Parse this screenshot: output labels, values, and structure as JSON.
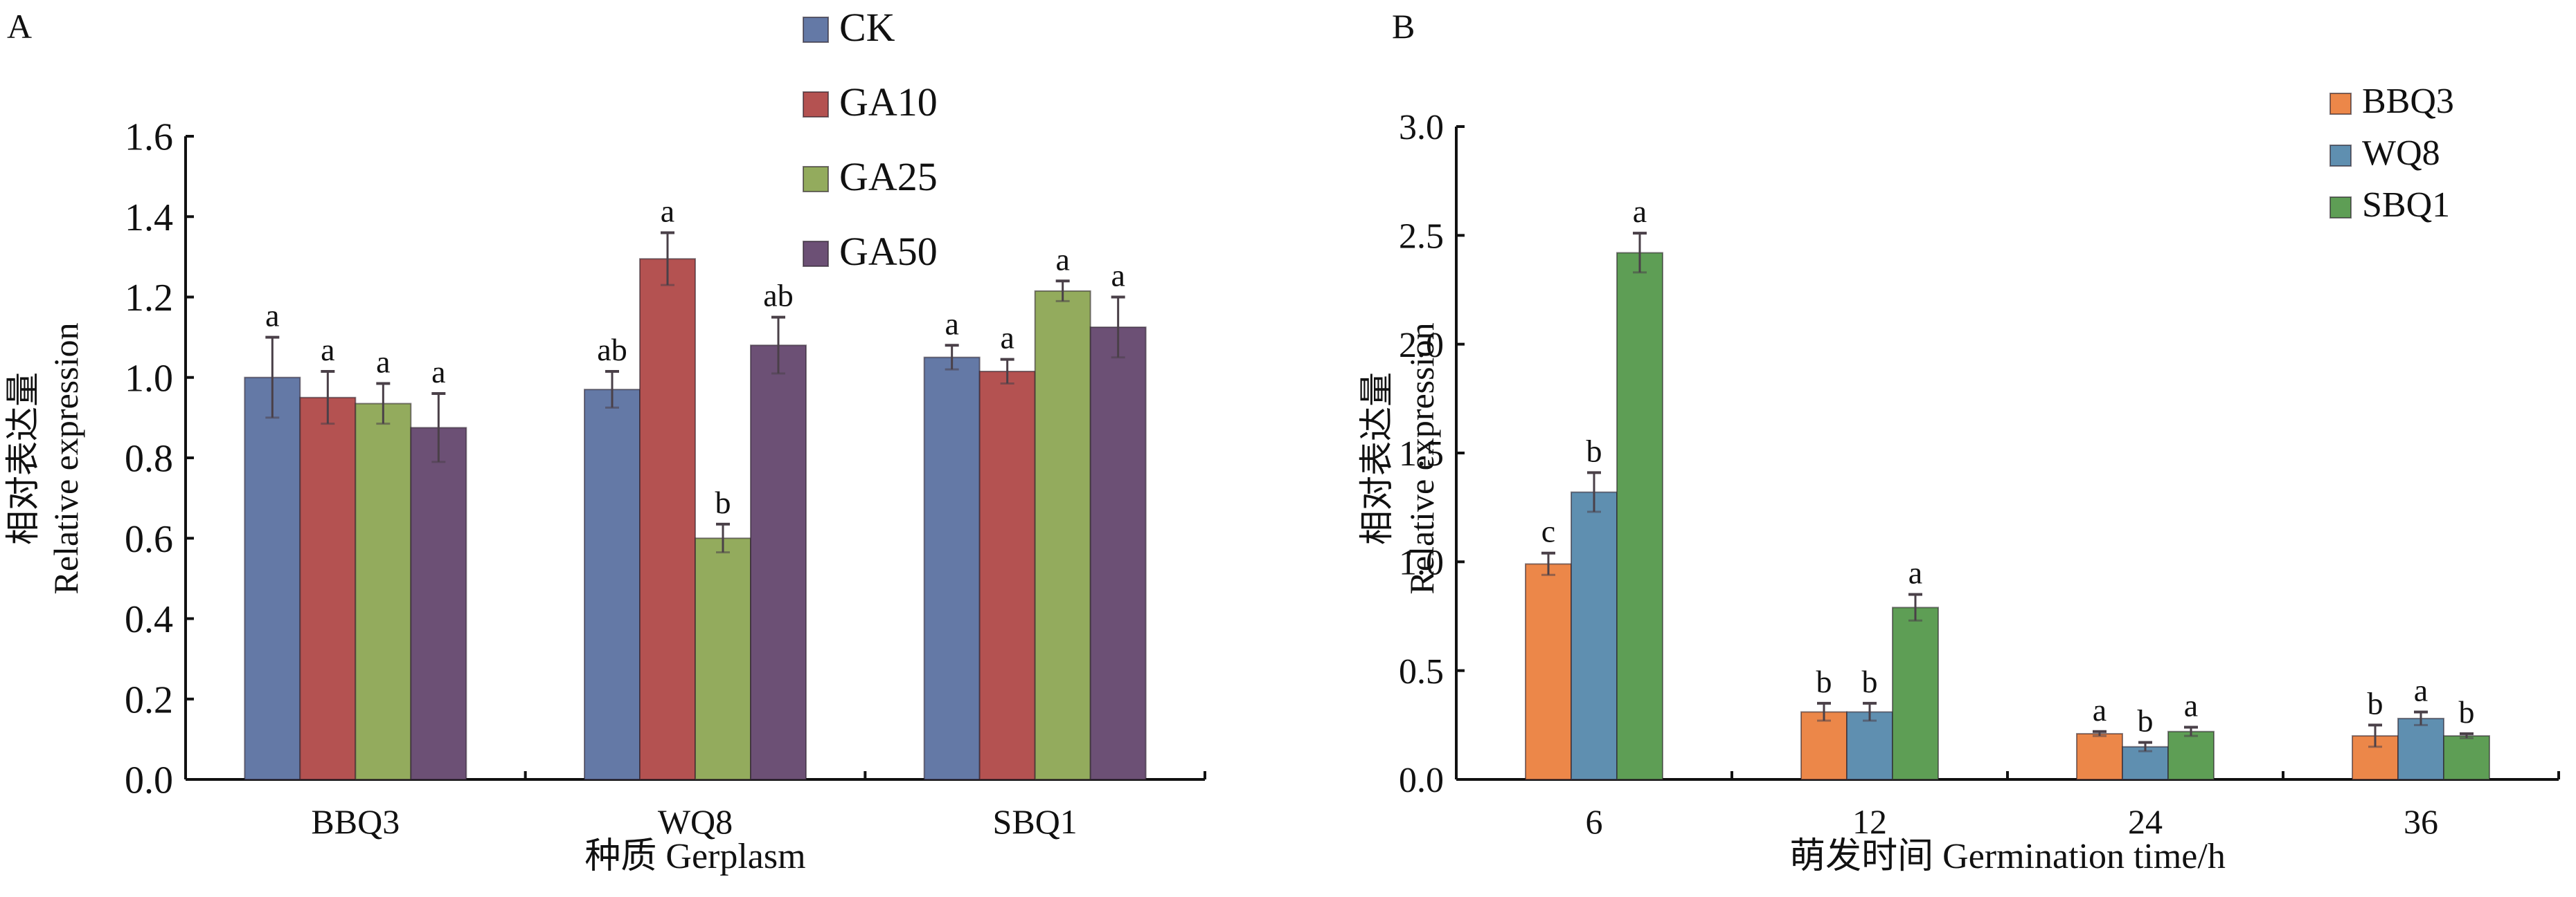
{
  "chart_data": [
    {
      "id": "A",
      "type": "bar",
      "panel_label": "A",
      "title": "",
      "xlabel": "种质 Gerplasm",
      "ylabel_cn": "相对表达量",
      "ylabel_en": "Relative expression",
      "ylim": [
        0,
        1.6
      ],
      "yticks": [
        0.0,
        0.2,
        0.4,
        0.6,
        0.8,
        1.0,
        1.2,
        1.4,
        1.6
      ],
      "ytick_labels": [
        "0.0",
        "0.2",
        "0.4",
        "0.6",
        "0.8",
        "1.0",
        "1.2",
        "1.4",
        "1.6"
      ],
      "categories": [
        "BBQ3",
        "WQ8",
        "SBQ1"
      ],
      "legend_position": "top-center",
      "grid": false,
      "series": [
        {
          "name": "CK",
          "color": "#6479a6",
          "values": [
            1.0,
            0.97,
            1.05
          ],
          "errors": [
            0.1,
            0.045,
            0.03
          ],
          "letters": [
            "a",
            "ab",
            "a"
          ]
        },
        {
          "name": "GA10",
          "color": "#b45251",
          "values": [
            0.95,
            1.295,
            1.015
          ],
          "errors": [
            0.065,
            0.065,
            0.03
          ],
          "letters": [
            "a",
            "a",
            "a"
          ]
        },
        {
          "name": "GA25",
          "color": "#93ab5d",
          "values": [
            0.935,
            0.6,
            1.215
          ],
          "errors": [
            0.05,
            0.035,
            0.025
          ],
          "letters": [
            "a",
            "b",
            "a"
          ]
        },
        {
          "name": "GA50",
          "color": "#6c5075",
          "values": [
            0.875,
            1.08,
            1.125
          ],
          "errors": [
            0.085,
            0.07,
            0.075
          ],
          "letters": [
            "a",
            "ab",
            "a"
          ]
        }
      ]
    },
    {
      "id": "B",
      "type": "bar",
      "panel_label": "B",
      "title": "",
      "xlabel": "萌发时间 Germination time/h",
      "ylabel_cn": "相对表达量",
      "ylabel_en": "Relative expression",
      "ylim": [
        0,
        3.0
      ],
      "yticks": [
        0.0,
        0.5,
        1.0,
        1.5,
        2.0,
        2.5,
        3.0
      ],
      "ytick_labels": [
        "0.0",
        "0.5",
        "1.0",
        "1.5",
        "2.0",
        "2.5",
        "3.0"
      ],
      "categories": [
        "6",
        "12",
        "24",
        "36"
      ],
      "legend_position": "top-right",
      "grid": false,
      "series": [
        {
          "name": "BBQ3",
          "color": "#ec8749",
          "values": [
            0.99,
            0.31,
            0.21,
            0.2
          ],
          "errors": [
            0.05,
            0.04,
            0.01,
            0.05
          ],
          "letters": [
            "c",
            "b",
            "a",
            "b"
          ]
        },
        {
          "name": "WQ8",
          "color": "#5f8fb0",
          "values": [
            1.32,
            0.31,
            0.15,
            0.28
          ],
          "errors": [
            0.09,
            0.04,
            0.02,
            0.03
          ],
          "letters": [
            "b",
            "b",
            "b",
            "a"
          ]
        },
        {
          "name": "SBQ1",
          "color": "#5e9e55",
          "values": [
            2.42,
            0.79,
            0.22,
            0.2
          ],
          "errors": [
            0.09,
            0.06,
            0.02,
            0.01
          ],
          "letters": [
            "a",
            "a",
            "a",
            "b"
          ]
        }
      ]
    }
  ]
}
